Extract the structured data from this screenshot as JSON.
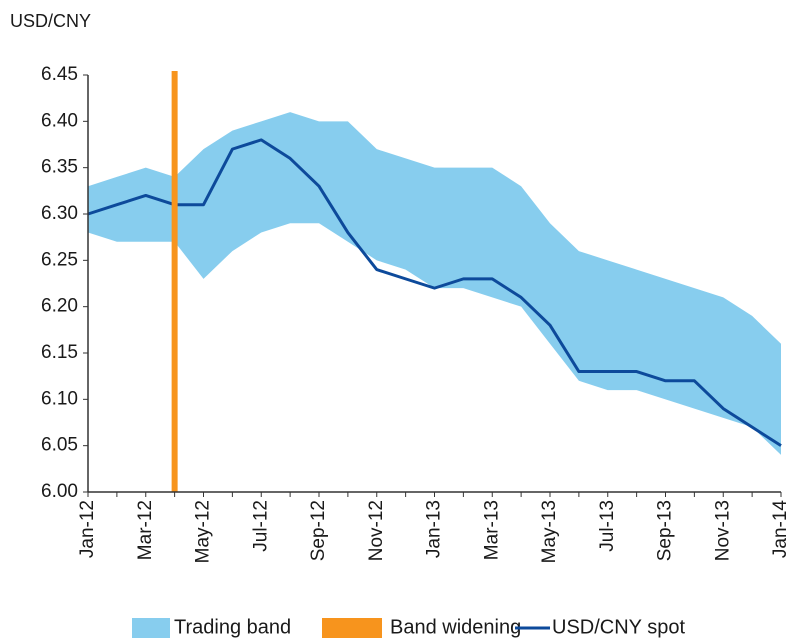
{
  "chart_data": {
    "type": "line",
    "y_axis_label": "USD/CNY",
    "categories": [
      "Jan-12",
      "Feb-12",
      "Mar-12",
      "Apr-12",
      "May-12",
      "Jun-12",
      "Jul-12",
      "Aug-12",
      "Sep-12",
      "Oct-12",
      "Nov-12",
      "Dec-12",
      "Jan-13",
      "Feb-13",
      "Mar-13",
      "Apr-13",
      "May-13",
      "Jun-13",
      "Jul-13",
      "Aug-13",
      "Sep-13",
      "Oct-13",
      "Nov-13",
      "Dec-13",
      "Jan-14"
    ],
    "series": [
      {
        "name": "Trading band",
        "color": "#87cdee",
        "values": [
          6.33,
          6.34,
          6.35,
          6.34,
          6.37,
          6.39,
          6.4,
          6.41,
          6.4,
          6.4,
          6.37,
          6.36,
          6.35,
          6.35,
          6.35,
          6.33,
          6.29,
          6.26,
          6.25,
          6.24,
          6.23,
          6.22,
          6.21,
          6.19,
          6.16
        ],
        "lower": [
          6.28,
          6.27,
          6.27,
          6.27,
          6.23,
          6.26,
          6.28,
          6.29,
          6.29,
          6.27,
          6.25,
          6.24,
          6.22,
          6.22,
          6.21,
          6.2,
          6.16,
          6.12,
          6.11,
          6.11,
          6.1,
          6.09,
          6.08,
          6.07,
          6.04
        ]
      },
      {
        "name": "Band widening",
        "color": "#f7941d",
        "x": "Apr-12"
      },
      {
        "name": "USD/CNY spot",
        "color": "#0d4a9b",
        "values": [
          6.3,
          6.31,
          6.32,
          6.31,
          6.31,
          6.37,
          6.38,
          6.36,
          6.33,
          6.28,
          6.24,
          6.23,
          6.22,
          6.23,
          6.23,
          6.21,
          6.18,
          6.13,
          6.13,
          6.13,
          6.12,
          6.12,
          6.09,
          6.07,
          6.05
        ]
      }
    ],
    "ylim": [
      6.0,
      6.45
    ],
    "yticks": [
      {
        "value": 6,
        "label": "6.00"
      },
      6.05,
      {
        "value": 6.1,
        "label": "6.10"
      },
      6.15,
      {
        "value": 6.2,
        "label": "6.20"
      },
      6.25,
      {
        "value": 6.3,
        "label": "6.30"
      },
      6.35,
      {
        "value": 6.4,
        "label": "6.40"
      },
      6.45
    ],
    "legend": "bottom"
  }
}
